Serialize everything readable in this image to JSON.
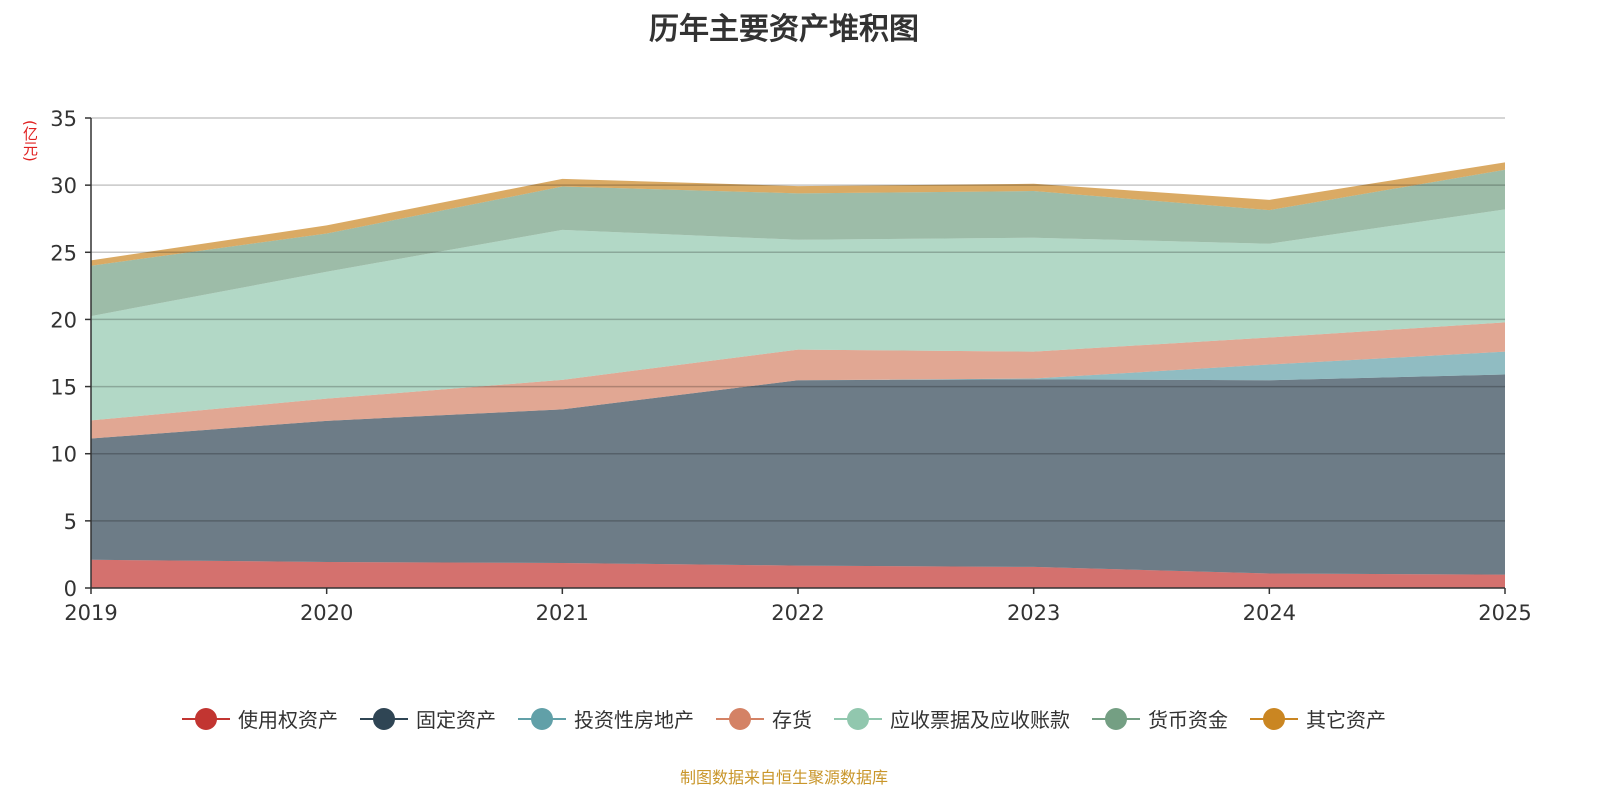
{
  "chart_data": {
    "type": "area",
    "stacked": true,
    "title": "历年主要资产堆积图",
    "ylabel": "(亿元)",
    "xlabel": "",
    "ylim": [
      0,
      35
    ],
    "yticks": [
      0,
      5,
      10,
      15,
      20,
      25,
      30,
      35
    ],
    "grid": true,
    "legend_position": "bottom",
    "categories": [
      "2019",
      "2020",
      "2021",
      "2022",
      "2023",
      "2024",
      "2025"
    ],
    "series": [
      {
        "name": "使用权资产",
        "color": "#c23531",
        "values": [
          2.1,
          1.94,
          1.86,
          1.67,
          1.57,
          1.08,
          1.0
        ]
      },
      {
        "name": "固定资产",
        "color": "#2f4554",
        "values": [
          9.03,
          10.51,
          11.44,
          13.8,
          13.97,
          14.39,
          14.9
        ]
      },
      {
        "name": "投资性房地产",
        "color": "#61a0a8",
        "values": [
          0,
          0,
          0,
          0,
          0.06,
          1.17,
          1.7
        ]
      },
      {
        "name": "存货",
        "color": "#d48265",
        "values": [
          1.35,
          1.65,
          2.2,
          2.28,
          2.0,
          2.01,
          2.18
        ]
      },
      {
        "name": "应收票据及应收账款",
        "color": "#91c7ae",
        "values": [
          7.77,
          9.45,
          11.17,
          8.18,
          8.48,
          6.99,
          8.42
        ]
      },
      {
        "name": "货币资金",
        "color": "#749f83",
        "values": [
          3.75,
          2.85,
          3.23,
          3.46,
          3.48,
          2.5,
          2.95
        ]
      },
      {
        "name": "其它资产",
        "color": "#ca8622",
        "values": [
          0.4,
          0.6,
          0.57,
          0.54,
          0.54,
          0.76,
          0.55
        ]
      }
    ],
    "source": "制图数据来自恒生聚源数据库"
  }
}
